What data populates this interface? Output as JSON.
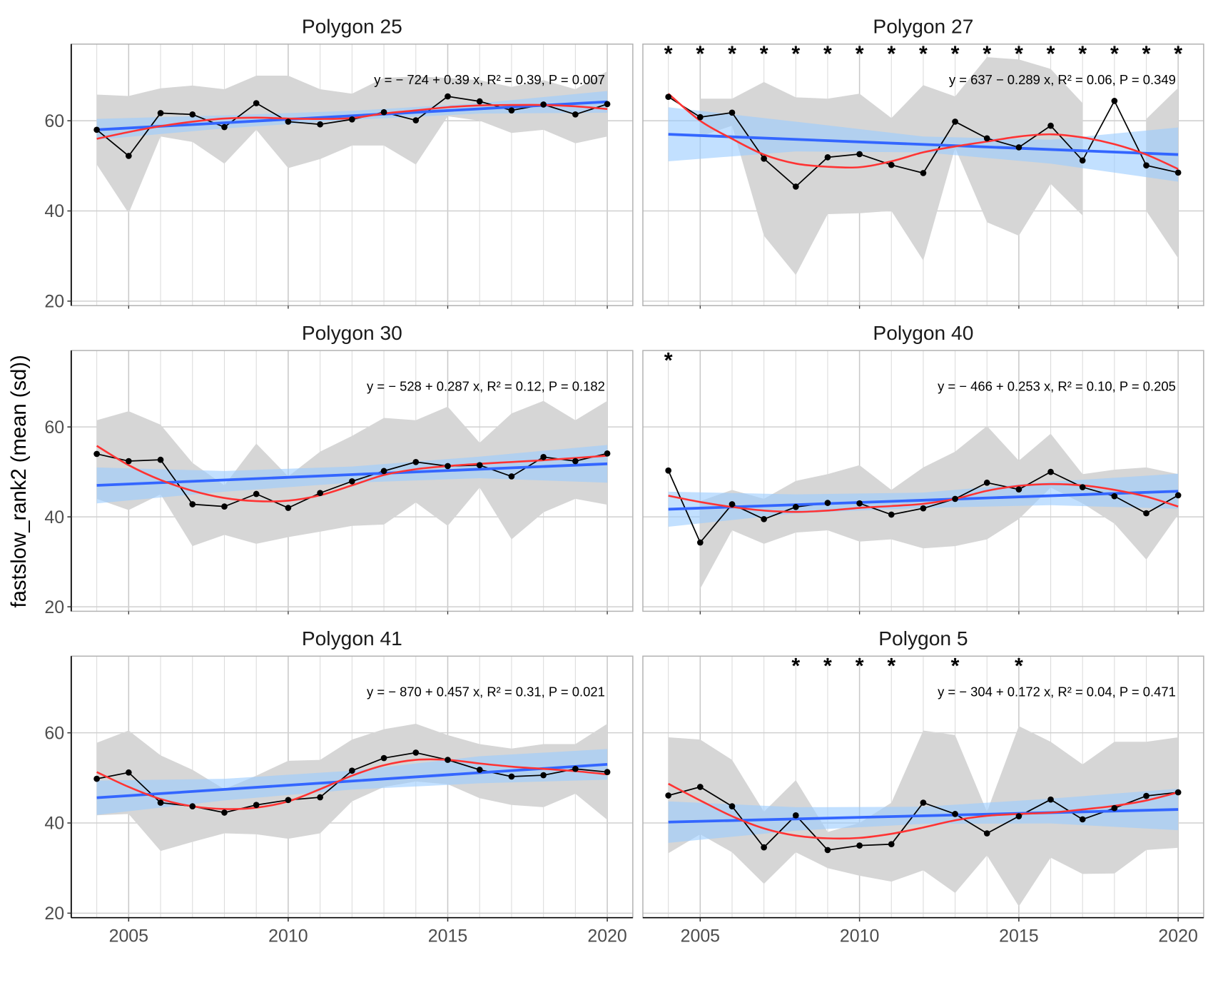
{
  "chart_data": {
    "type": "line",
    "ylabel": "fastslow_rank2 (mean (sd))",
    "xlabel": "",
    "xlim": [
      2003.2,
      2020.8
    ],
    "ylim": [
      19,
      77
    ],
    "xticks": [
      2005,
      2010,
      2015,
      2020
    ],
    "yticks": [
      20,
      40,
      60
    ],
    "grid": true,
    "years": [
      2004,
      2005,
      2006,
      2007,
      2008,
      2009,
      2010,
      2011,
      2012,
      2013,
      2014,
      2015,
      2016,
      2017,
      2018,
      2019,
      2020
    ],
    "colors": {
      "mean_line": "#000000",
      "sd_band": "#d6d6d6",
      "lm_line": "#3366ff",
      "lm_ci": "#99ccff",
      "loess": "#ff3333"
    },
    "panels": [
      {
        "title": "Polygon 25",
        "equation": "y = − 724 + 0.39 x, R² = 0.39, P = 0.007",
        "mean": [
          58,
          52.2,
          61.7,
          61.4,
          58.6,
          63.9,
          59.8,
          59.2,
          60.3,
          61.9,
          60.1,
          65.4,
          64.3,
          62.3,
          63.6,
          61.4,
          63.7
        ],
        "upper": [
          65.8,
          65.5,
          67.2,
          67.8,
          67,
          70,
          70,
          67,
          66,
          69.5,
          69.8,
          69.5,
          69,
          67.5,
          69,
          67,
          71
        ],
        "lower": [
          50.3,
          39.5,
          56.5,
          55.3,
          50.5,
          58,
          49.5,
          51.5,
          54.5,
          54.5,
          50.3,
          61,
          60,
          57.3,
          58,
          55,
          56.5
        ],
        "lm": [
          58,
          64.2
        ],
        "lm_ci": {
          "years": [
            2004,
            2008,
            2012,
            2016,
            2020
          ],
          "lower": [
            55.8,
            58.3,
            60.2,
            61.6,
            61.8
          ],
          "upper": [
            60.4,
            61.2,
            62.2,
            63.9,
            66.6
          ]
        },
        "loess": [
          56,
          57.5,
          58.8,
          59.8,
          60.5,
          60.7,
          60.5,
          60.4,
          60.6,
          61.6,
          62.3,
          63,
          63.4,
          63.5,
          63.5,
          63.2,
          62.6
        ],
        "stars": []
      },
      {
        "title": "Polygon 27",
        "equation": "y = 637 − 0.289 x, R² = 0.06, P = 0.349",
        "mean": [
          65.3,
          60.8,
          61.8,
          51.6,
          45.4,
          51.9,
          52.6,
          50.2,
          48.4,
          59.8,
          56.1,
          54.1,
          58.9,
          51.2,
          64.4,
          50.1,
          48.5
        ],
        "upper": [
          null,
          64.9,
          64.9,
          68.6,
          65.2,
          64.9,
          66,
          60.6,
          67.9,
          65.4,
          74.1,
          73.6,
          71.5,
          63.9,
          null,
          60.4,
          67.3
        ],
        "lower": [
          null,
          56.5,
          58.9,
          34.5,
          25.8,
          39.3,
          39.5,
          40,
          29,
          54,
          37.5,
          34.5,
          46,
          39,
          null,
          40,
          29.5
        ],
        "lm": [
          57,
          52.5
        ],
        "lm_ci": {
          "years": [
            2004,
            2008,
            2012,
            2016,
            2020
          ],
          "lower": [
            51,
            53.2,
            53,
            50.5,
            46.5
          ],
          "upper": [
            63,
            59.8,
            56.5,
            55.8,
            58.5
          ]
        },
        "loess": [
          66,
          60,
          56,
          52.5,
          50.5,
          49.8,
          49.7,
          51,
          53,
          54.3,
          55.4,
          56.5,
          57,
          56.3,
          54.8,
          52.5,
          49.3
        ],
        "stars": [
          2004,
          2005,
          2006,
          2007,
          2008,
          2009,
          2010,
          2011,
          2012,
          2013,
          2014,
          2015,
          2016,
          2017,
          2018,
          2019,
          2020
        ]
      },
      {
        "title": "Polygon 30",
        "equation": "y = − 528 + 0.287 x, R² = 0.12, P = 0.182",
        "mean": [
          54,
          52.4,
          52.7,
          42.8,
          42.3,
          45.1,
          42,
          45.3,
          47.9,
          50.2,
          52.2,
          51.3,
          51.5,
          49,
          53.3,
          52.4,
          54.1
        ],
        "upper": [
          61.5,
          63.5,
          60.5,
          52,
          47,
          56.3,
          49,
          54.5,
          58,
          62,
          61.5,
          64.5,
          56.5,
          63,
          65.8,
          61.5,
          65.8
        ],
        "lower": [
          44,
          41.5,
          45,
          33.5,
          36,
          34,
          35.5,
          36.7,
          38,
          38.3,
          43.2,
          38,
          46.5,
          35,
          41,
          44,
          42.7
        ],
        "lm": [
          47,
          51.8
        ],
        "lm_ci": {
          "years": [
            2004,
            2008,
            2012,
            2016,
            2020
          ],
          "lower": [
            43,
            45.6,
            47.6,
            48.6,
            47.6
          ],
          "upper": [
            51,
            50.2,
            51.2,
            53.4,
            56
          ]
        },
        "loess": [
          55.8,
          51.5,
          48.2,
          45.8,
          44.2,
          43.5,
          43.6,
          44.8,
          47,
          49.3,
          50.6,
          51.3,
          51.8,
          52.2,
          52.6,
          53.1,
          53.6
        ],
        "stars": []
      },
      {
        "title": "Polygon 40",
        "equation": "y = − 466 + 0.253 x, R² = 0.10, P = 0.205",
        "mean": [
          50.3,
          34.3,
          42.8,
          39.5,
          42.2,
          43.1,
          43,
          40.5,
          41.9,
          44,
          47.6,
          46.1,
          50,
          46.6,
          44.6,
          40.8,
          44.8
        ],
        "upper": [
          null,
          43.5,
          46,
          44,
          48,
          49.5,
          51.5,
          46,
          51,
          54.5,
          60.2,
          52.5,
          58.5,
          49.5,
          50.5,
          51,
          49.5
        ],
        "lower": [
          null,
          24,
          37,
          34,
          36.5,
          37,
          34.5,
          35,
          33,
          33.5,
          35,
          39.5,
          46.5,
          43,
          38.5,
          30.5,
          40.5
        ],
        "lm": [
          41.7,
          45.7
        ],
        "lm_ci": {
          "years": [
            2004,
            2008,
            2012,
            2016,
            2020
          ],
          "lower": [
            37.8,
            40.8,
            42,
            42.6,
            41.8
          ],
          "upper": [
            45.6,
            45,
            45.4,
            47.8,
            49.6
          ]
        },
        "loess": [
          44.7,
          43.3,
          42.2,
          41.4,
          41.1,
          41.4,
          42,
          42.4,
          42.9,
          44,
          45.8,
          46.9,
          47.3,
          47,
          46,
          44.5,
          42.3
        ],
        "stars": [
          2004
        ]
      },
      {
        "title": "Polygon 41",
        "equation": "y = − 870 + 0.457 x, R² = 0.31, P = 0.021",
        "mean": [
          49.8,
          51.2,
          44.5,
          43.7,
          42.3,
          44,
          45.1,
          45.7,
          51.6,
          54.4,
          55.6,
          54,
          51.8,
          50.3,
          50.6,
          52,
          51.3
        ],
        "upper": [
          57.8,
          60.5,
          55,
          51.8,
          47.5,
          50.5,
          53.8,
          54,
          58.5,
          60.8,
          62,
          59.5,
          57.5,
          56.5,
          57.5,
          57.5,
          62
        ],
        "lower": [
          41.7,
          42,
          33.8,
          35.8,
          37.7,
          37.5,
          36.5,
          37.7,
          44.8,
          48,
          49.2,
          48.6,
          45.5,
          44,
          43.5,
          46.5,
          40.7
        ],
        "lm": [
          45.6,
          53
        ],
        "lm_ci": {
          "years": [
            2004,
            2008,
            2012,
            2016,
            2020
          ],
          "lower": [
            41.8,
            45,
            47.4,
            48.8,
            49.6
          ],
          "upper": [
            49.4,
            49.8,
            51.6,
            54.8,
            56.4
          ]
        },
        "loess": [
          51.3,
          48,
          45.3,
          43.7,
          43.1,
          43.4,
          44.8,
          47.5,
          50.5,
          52.8,
          54,
          54,
          53.2,
          52.5,
          52,
          51.5,
          50.8
        ],
        "stars": []
      },
      {
        "title": "Polygon 5",
        "equation": "y = − 304 + 0.172 x, R² = 0.04, P = 0.471",
        "mean": [
          46.1,
          48,
          43.7,
          34.6,
          41.7,
          34,
          35,
          35.3,
          44.5,
          42,
          37.7,
          41.5,
          45.2,
          40.8,
          43.3,
          46,
          46.8
        ],
        "upper": [
          59,
          58.5,
          54,
          42.5,
          49.5,
          38,
          40,
          44.5,
          60.5,
          59.5,
          42.5,
          61.5,
          58,
          53,
          58,
          58,
          59
        ],
        "lower": [
          33.3,
          37.5,
          33.5,
          26.5,
          33.5,
          30,
          28.3,
          27,
          29.5,
          24.5,
          32.8,
          21.5,
          32.3,
          28.7,
          28.8,
          34,
          34.5
        ],
        "lm": [
          40.2,
          43
        ],
        "lm_ci": {
          "years": [
            2004,
            2008,
            2012,
            2016,
            2020
          ],
          "lower": [
            35.6,
            38.3,
            39.8,
            39.9,
            38.4
          ],
          "upper": [
            44.8,
            43.5,
            43.6,
            45.4,
            47.6
          ]
        },
        "loess": [
          48.7,
          45,
          41.5,
          38.8,
          37.2,
          36.6,
          36.7,
          37.6,
          39,
          40.6,
          41.6,
          42,
          42.3,
          43,
          43.8,
          45,
          46.8
        ],
        "stars": [
          2008,
          2009,
          2010,
          2011,
          2013,
          2015
        ]
      }
    ]
  }
}
